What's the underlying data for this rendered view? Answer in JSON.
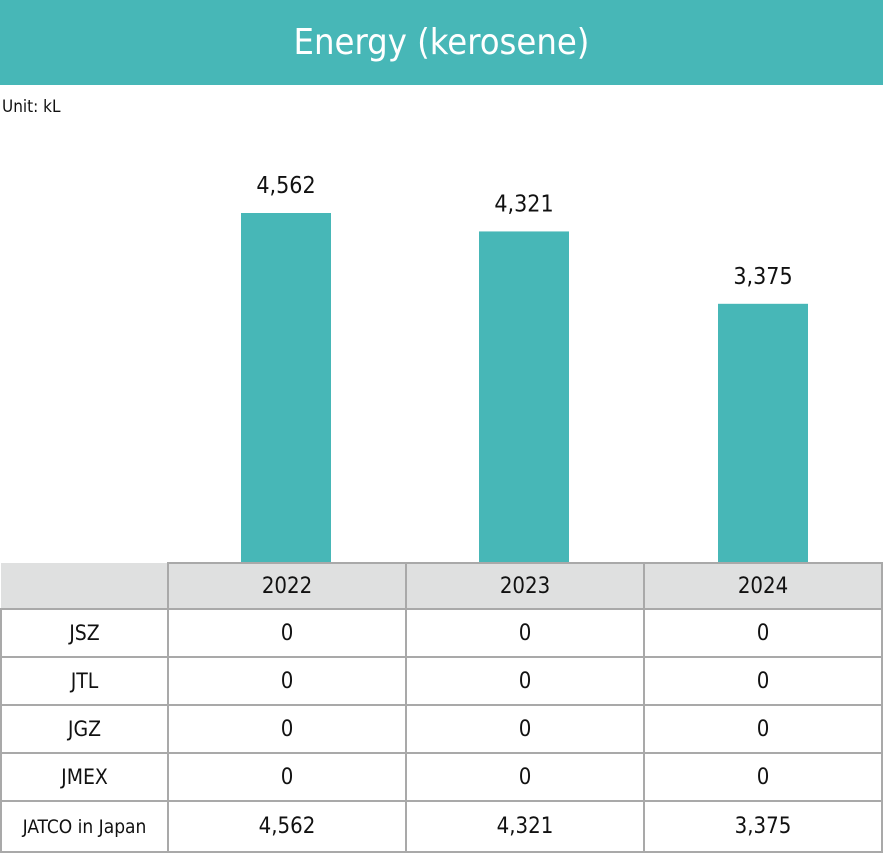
{
  "title": "Energy (kerosene)",
  "unit": "Unit: kL",
  "colors": {
    "bar": "#47b7b7",
    "header_bg": "#47b7b7",
    "table_header_bg": "#dfe0e0"
  },
  "chart_data": {
    "type": "bar",
    "title": "Energy (kerosene)",
    "categories": [
      "2022",
      "2023",
      "2024"
    ],
    "values": [
      4562,
      4321,
      3375
    ],
    "data_labels": [
      "4,562",
      "4,321",
      "3,375"
    ],
    "ylim": [
      0,
      4562
    ],
    "grid": false
  },
  "table": {
    "columns": [
      "2022",
      "2023",
      "2024"
    ],
    "rows": [
      {
        "label": "JSZ",
        "values": [
          "0",
          "0",
          "0"
        ]
      },
      {
        "label": "JTL",
        "values": [
          "0",
          "0",
          "0"
        ]
      },
      {
        "label": "JGZ",
        "values": [
          "0",
          "0",
          "0"
        ]
      },
      {
        "label": "JMEX",
        "values": [
          "0",
          "0",
          "0"
        ]
      },
      {
        "label": "JATCO in Japan",
        "values": [
          "4,562",
          "4,321",
          "3,375"
        ]
      }
    ]
  }
}
